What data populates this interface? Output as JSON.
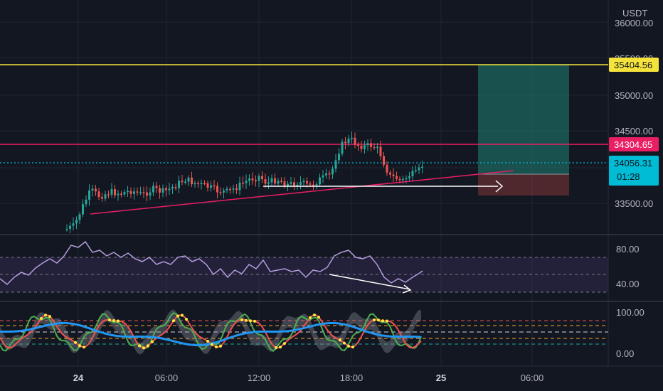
{
  "price_axis": {
    "currency": "USDT",
    "ticks": [
      "36000.00",
      "35500.00",
      "35000.00",
      "34500.00",
      "33500.00"
    ]
  },
  "price_tags": {
    "target": "35404.56",
    "resistance": "34304.65",
    "current": "34056.31",
    "countdown": "01:28"
  },
  "rsi_axis": {
    "ticks": [
      "80.00",
      "40.00"
    ]
  },
  "stoch_axis": {
    "ticks": [
      "100.00",
      "0.00"
    ]
  },
  "time_axis": {
    "ticks": [
      "24",
      "06:00",
      "12:00",
      "18:00",
      "25",
      "06:00"
    ]
  },
  "colors": {
    "background": "#131722",
    "up_candle": "#26a69a",
    "down_candle": "#ef5350",
    "target_line": "#f5e33b",
    "resistance_line": "#e91e63",
    "current_price": "#00bcd4",
    "rsi_line": "#b39ddb"
  }
}
